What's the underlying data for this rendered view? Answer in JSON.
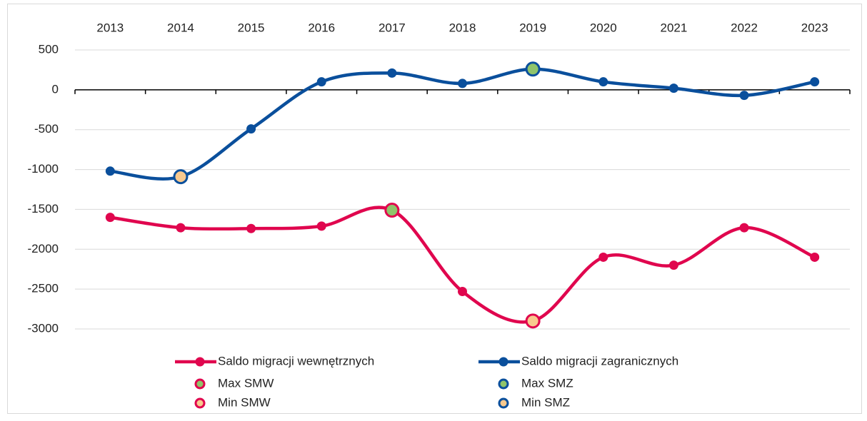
{
  "chart_data": {
    "type": "line",
    "categories": [
      "2013",
      "2014",
      "2015",
      "2016",
      "2017",
      "2018",
      "2019",
      "2020",
      "2021",
      "2022",
      "2023"
    ],
    "ylim": [
      -3000,
      500
    ],
    "yticks": [
      500,
      0,
      -500,
      -1000,
      -1500,
      -2000,
      -2500,
      -3000
    ],
    "grid": true,
    "series": [
      {
        "name": "Saldo migracji wewnętrznych",
        "color": "#e0064e",
        "values": [
          -1600,
          -1730,
          -1740,
          -1710,
          -1510,
          -2530,
          -2900,
          -2100,
          -2200,
          -1730,
          -2100
        ]
      },
      {
        "name": "Saldo migracji zagranicznych",
        "color": "#0a4f9c",
        "values": [
          -1020,
          -1090,
          -490,
          100,
          210,
          80,
          260,
          100,
          20,
          -70,
          100
        ]
      },
      {
        "name": "Max SMW",
        "color": "#8fc46a",
        "edge": "#e0064e",
        "values": [
          null,
          null,
          null,
          null,
          -1510,
          null,
          null,
          null,
          null,
          null,
          null
        ]
      },
      {
        "name": "Max SMZ",
        "color": "#8fc46a",
        "edge": "#0a4f9c",
        "values": [
          null,
          null,
          null,
          null,
          null,
          null,
          260,
          null,
          null,
          null,
          null
        ]
      },
      {
        "name": "Min SMW",
        "color": "#f8c98e",
        "edge": "#e0064e",
        "values": [
          null,
          null,
          null,
          null,
          null,
          null,
          -2900,
          null,
          null,
          null,
          null
        ]
      },
      {
        "name": "Min SMZ",
        "color": "#f8c98e",
        "edge": "#0a4f9c",
        "values": [
          null,
          -1090,
          null,
          null,
          null,
          null,
          null,
          null,
          null,
          null,
          null
        ]
      }
    ]
  }
}
